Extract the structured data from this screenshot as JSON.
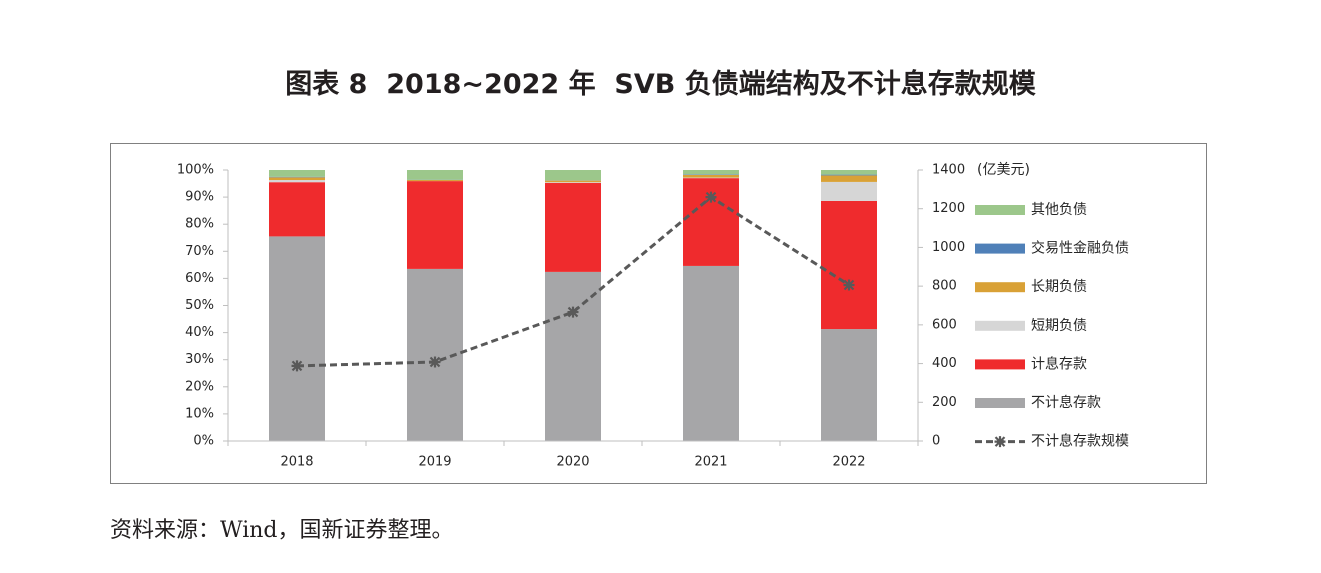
{
  "title": "图表 8  2018~2022 年  SVB 负债端结构及不计息存款规模",
  "source": "资料来源：Wind，国新证券整理。",
  "chart_data": {
    "type": "bar",
    "stacked": true,
    "categories": [
      "2018",
      "2019",
      "2020",
      "2021",
      "2022"
    ],
    "series": [
      {
        "name": "不计息存款",
        "kind": "bar",
        "axis": "left",
        "color": "#a6a6a8",
        "values": [
          75.5,
          63.5,
          62.4,
          64.6,
          41.3
        ]
      },
      {
        "name": "计息存款",
        "kind": "bar",
        "axis": "left",
        "color": "#ef2b2d",
        "values": [
          20.0,
          32.4,
          32.8,
          32.4,
          47.3
        ]
      },
      {
        "name": "短期负债",
        "kind": "bar",
        "axis": "left",
        "color": "#d6d6d6",
        "values": [
          0.8,
          0.0,
          0.3,
          0.2,
          7.0
        ]
      },
      {
        "name": "长期负债",
        "kind": "bar",
        "axis": "left",
        "color": "#d9a136",
        "values": [
          1.0,
          0.4,
          0.6,
          1.0,
          2.4
        ]
      },
      {
        "name": "交易性金融负债",
        "kind": "bar",
        "axis": "left",
        "color": "#4f80b8",
        "values": [
          0.2,
          0.1,
          0.1,
          0.2,
          0.3
        ]
      },
      {
        "name": "其他负债",
        "kind": "bar",
        "axis": "left",
        "color": "#9cc78b",
        "values": [
          2.5,
          3.6,
          3.8,
          1.6,
          1.7
        ]
      }
    ],
    "line_series": {
      "name": "不计息存款规模",
      "kind": "line",
      "axis": "right",
      "style": "dashed",
      "marker": "asterisk",
      "color": "#595959",
      "values": [
        388,
        408,
        666,
        1260,
        806
      ]
    },
    "y_left": {
      "range": [
        0,
        100
      ],
      "ticks": [
        "0%",
        "10%",
        "20%",
        "30%",
        "40%",
        "50%",
        "60%",
        "70%",
        "80%",
        "90%",
        "100%"
      ]
    },
    "y_right": {
      "range": [
        0,
        1400
      ],
      "ticks": [
        "0",
        "200",
        "400",
        "600",
        "800",
        "1000",
        "1200",
        "1400"
      ],
      "unit_label": "(亿美元)"
    },
    "grid": false,
    "legend_position": "right"
  }
}
